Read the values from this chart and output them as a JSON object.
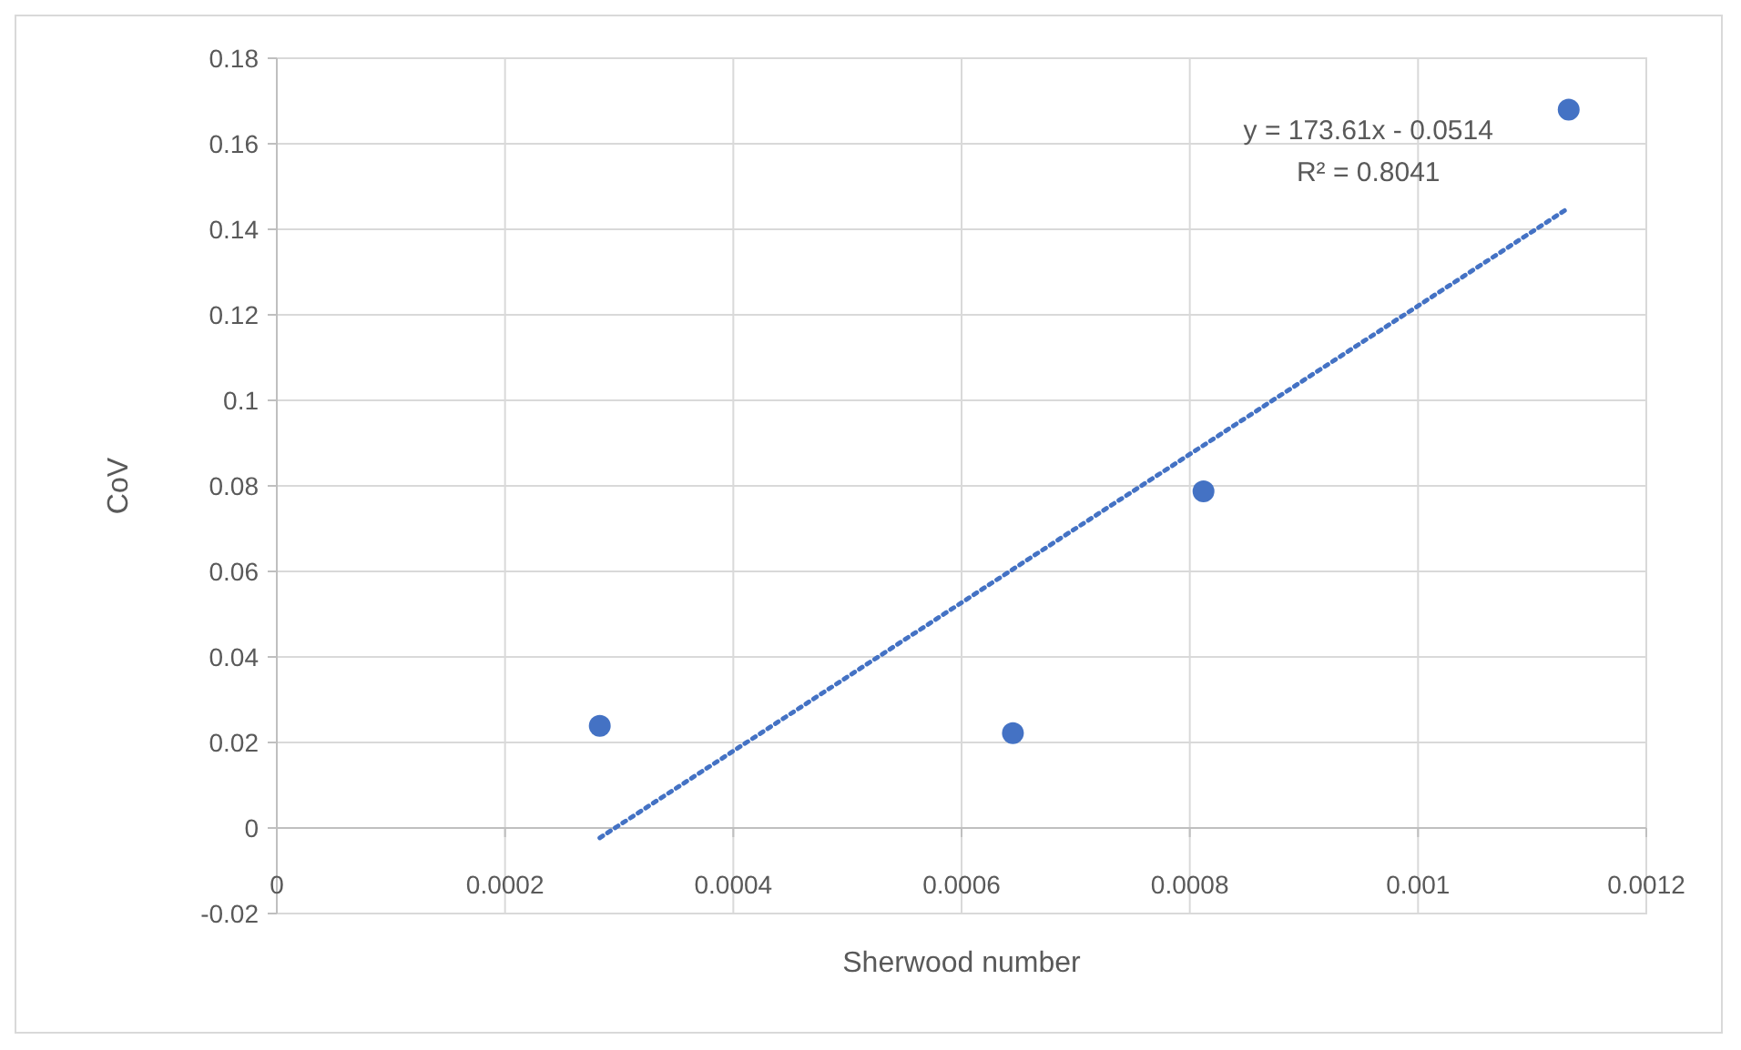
{
  "chart_data": {
    "type": "scatter",
    "xlabel": "Sherwood number",
    "ylabel": "CoV",
    "xlim": [
      0,
      0.0012
    ],
    "xticks": [
      0,
      0.0002,
      0.0004,
      0.0006,
      0.0008,
      0.001,
      0.0012
    ],
    "ylim": [
      -0.02,
      0.18
    ],
    "yticks": [
      -0.02,
      0,
      0.02,
      0.04,
      0.06,
      0.08,
      0.1,
      0.12,
      0.14,
      0.16,
      0.18
    ],
    "grid": true,
    "series": [
      {
        "color": "#4472c4",
        "marker": "circle",
        "x": [
          0.000283,
          0.000645,
          0.000812,
          0.001132
        ],
        "values": [
          0.0239,
          0.0222,
          0.0787,
          0.168
        ]
      },
      {
        "type": "line",
        "color": "#4472c4",
        "line_style": "dotted",
        "marker": "none",
        "x": [
          0.000283,
          0.001132
        ],
        "values": [
          -0.0023,
          0.145
        ]
      }
    ],
    "annotations": [
      "y = 173.61x - 0.0514",
      "R² = 0.8041"
    ]
  }
}
